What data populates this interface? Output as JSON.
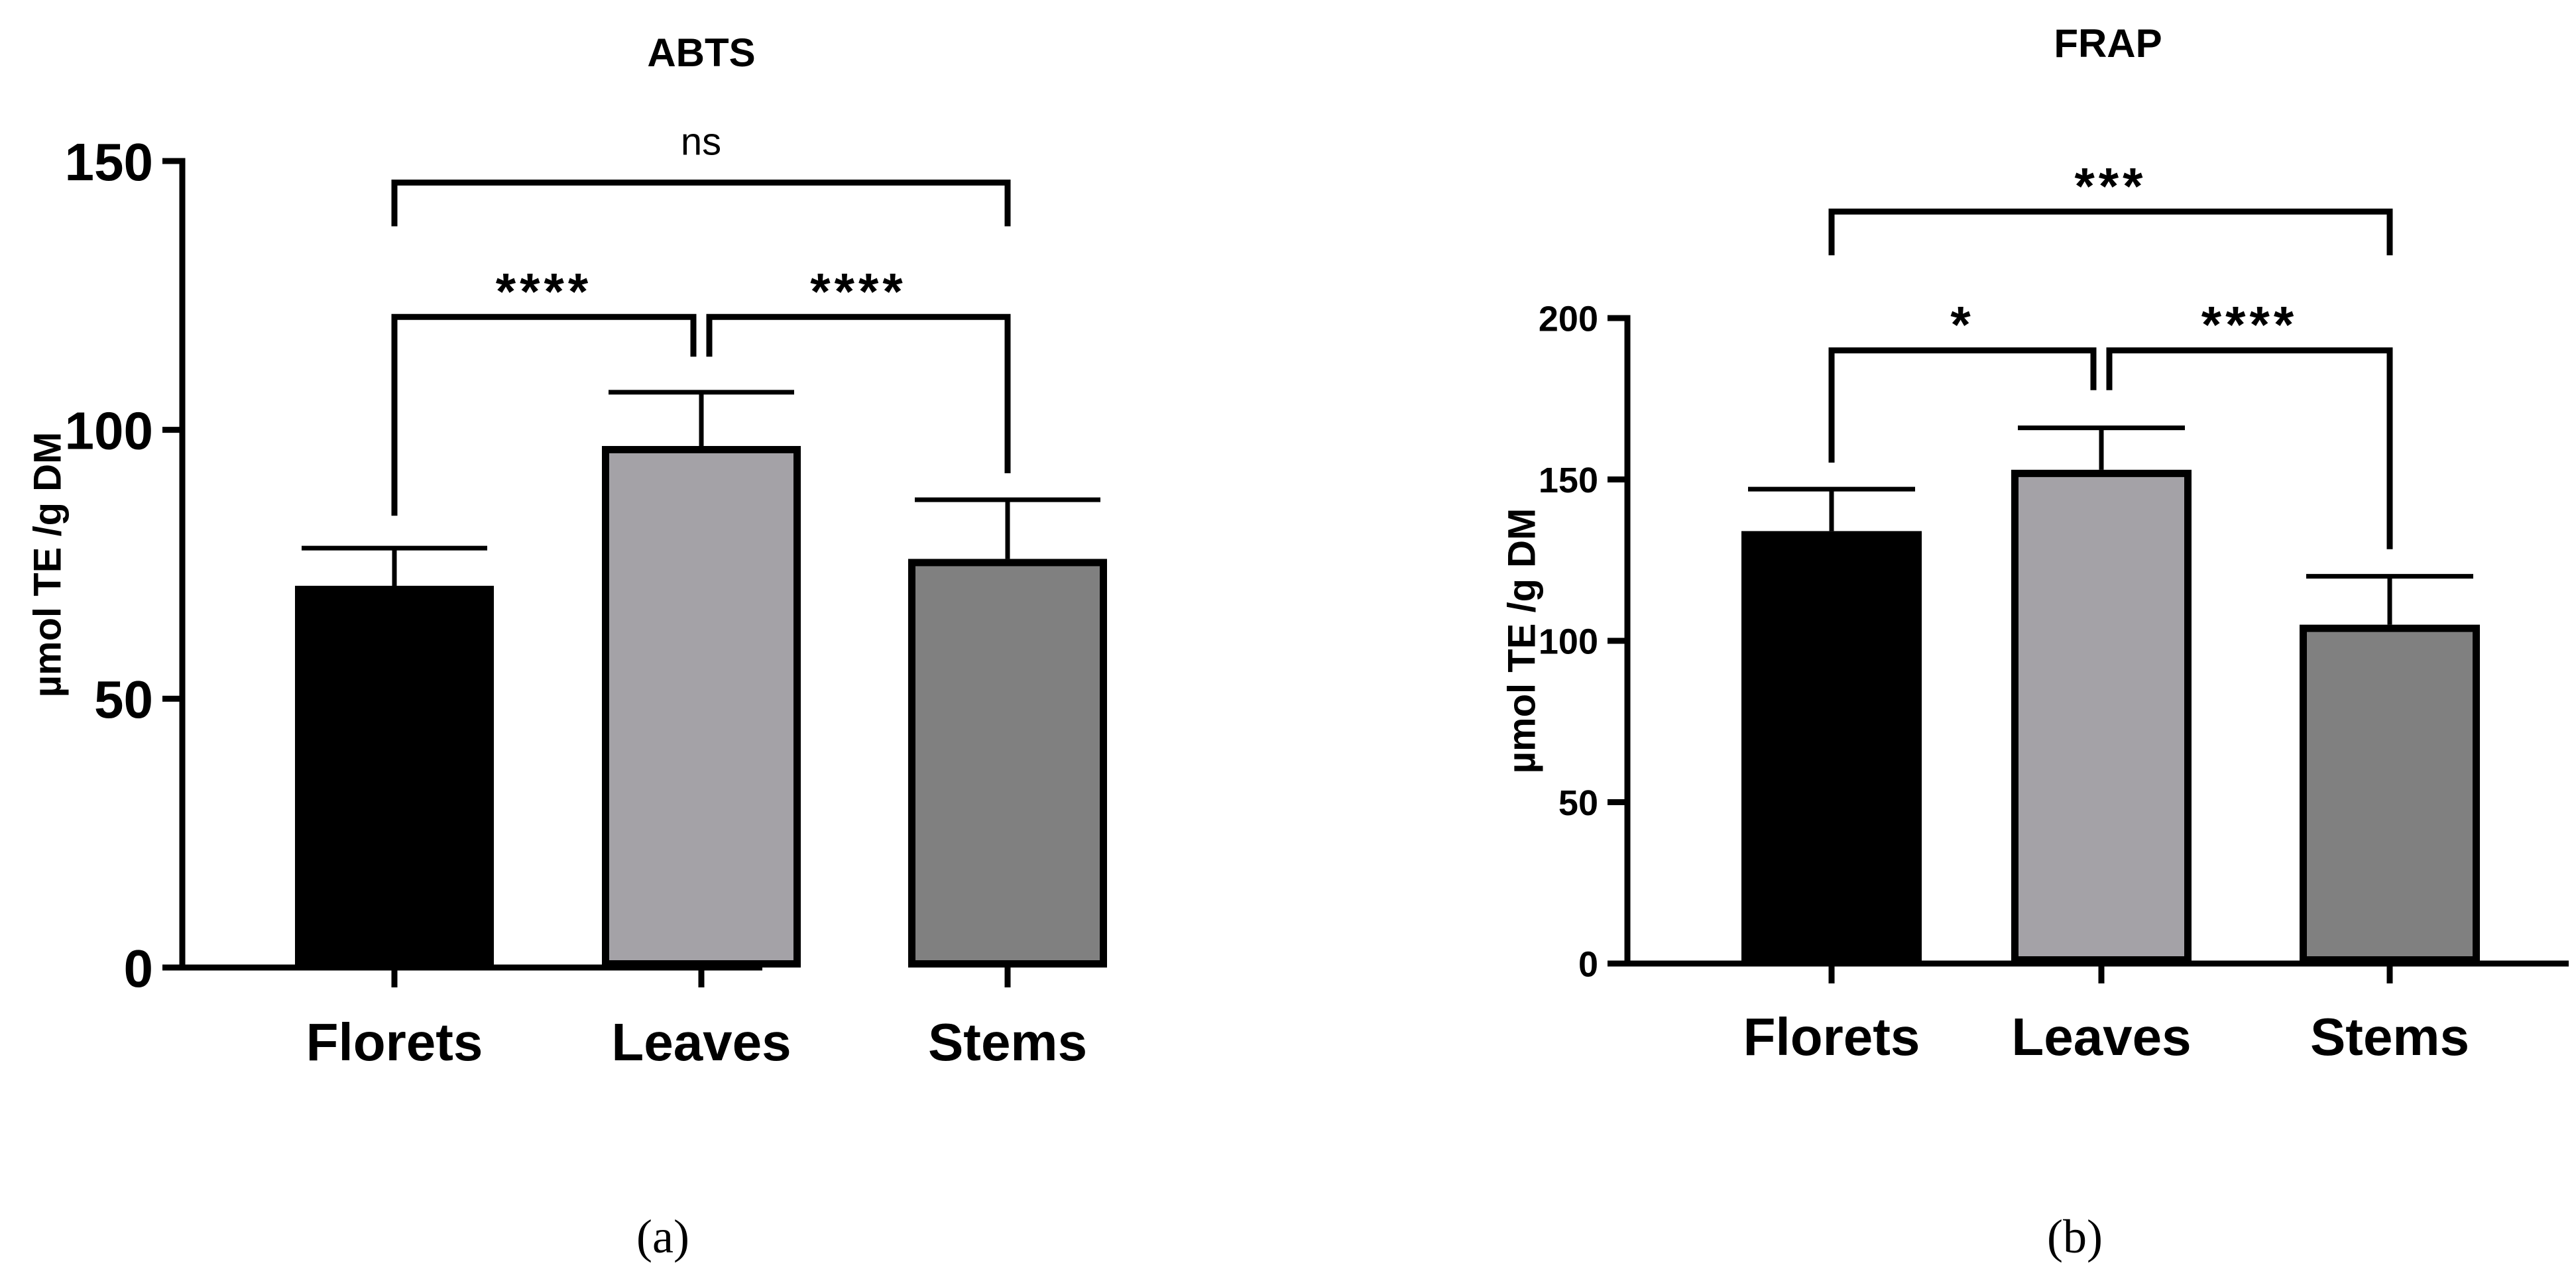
{
  "chart_data": [
    {
      "type": "bar",
      "title": "ABTS",
      "panel_label": "(a)",
      "xlabel": "",
      "ylabel": "µmol TE /g DM",
      "categories": [
        "Florets",
        "Leaves",
        "Stems"
      ],
      "values": [
        71,
        97,
        76
      ],
      "errors": [
        7,
        10,
        11
      ],
      "bar_colors": [
        "#000000",
        "#a4a2a7",
        "#808080"
      ],
      "ylim": [
        0,
        150
      ],
      "yticks": [
        0,
        50,
        100,
        150
      ],
      "ytick_labels": [
        "0",
        "50",
        "100",
        "150"
      ],
      "significance": [
        {
          "from": 0,
          "to": 2,
          "label": "ns",
          "y": 146
        },
        {
          "from": 0,
          "to": 1,
          "label": "****",
          "y": 121
        },
        {
          "from": 1,
          "to": 2,
          "label": "****",
          "y": 121
        }
      ]
    },
    {
      "type": "bar",
      "title": "FRAP",
      "panel_label": "(b)",
      "xlabel": "",
      "ylabel": "µmol TE /g DM",
      "categories": [
        "Florets",
        "Leaves",
        "Stems"
      ],
      "values": [
        134,
        153,
        105
      ],
      "errors": [
        13,
        13,
        15
      ],
      "bar_colors": [
        "#000000",
        "#a4a2a7",
        "#808080"
      ],
      "ylim": [
        0,
        200
      ],
      "yticks": [
        0,
        50,
        100,
        150,
        200
      ],
      "ytick_labels": [
        "0",
        "50",
        "100",
        "150",
        "200"
      ],
      "significance": [
        {
          "from": 0,
          "to": 2,
          "label": "***",
          "y": 233
        },
        {
          "from": 0,
          "to": 1,
          "label": "*",
          "y": 190
        },
        {
          "from": 1,
          "to": 2,
          "label": "****",
          "y": 190
        }
      ]
    }
  ]
}
